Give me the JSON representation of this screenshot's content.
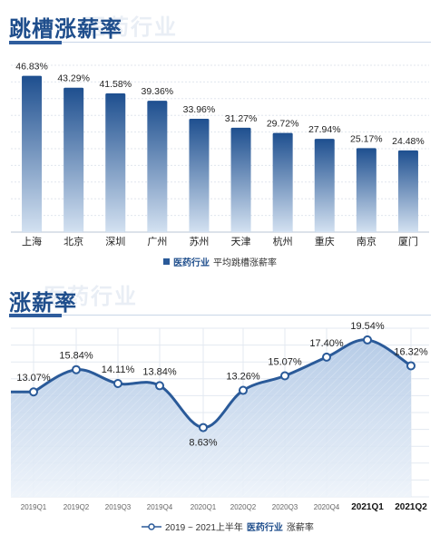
{
  "watermark": "医药行业",
  "chart_data": [
    {
      "type": "bar",
      "title": "跳槽涨薪率",
      "categories": [
        "上海",
        "北京",
        "深圳",
        "广州",
        "苏州",
        "天津",
        "杭州",
        "重庆",
        "南京",
        "厦门"
      ],
      "values": [
        46.83,
        43.29,
        41.58,
        39.36,
        33.96,
        31.27,
        29.72,
        27.94,
        25.17,
        24.48
      ],
      "value_labels": [
        "46.83%",
        "43.29%",
        "41.58%",
        "39.36%",
        "33.96%",
        "31.27%",
        "29.72%",
        "27.94%",
        "25.17%",
        "24.48%"
      ],
      "ylim": [
        0,
        50
      ],
      "grid": true,
      "legend": {
        "brand": "医药行业",
        "text": "平均跳槽涨薪率",
        "position": "bottom"
      },
      "colors": {
        "bar_top": "#1e4f8f",
        "bar_bottom": "#d3e1f1"
      }
    },
    {
      "type": "area",
      "title": "涨薪率",
      "categories": [
        "2019Q1",
        "2019Q2",
        "2019Q3",
        "2019Q4",
        "2020Q1",
        "2020Q2",
        "2020Q3",
        "2020Q4",
        "2021Q1",
        "2021Q2"
      ],
      "values": [
        13.07,
        15.84,
        14.11,
        13.84,
        8.63,
        13.26,
        15.07,
        17.4,
        19.54,
        16.32
      ],
      "value_labels": [
        "13.07%",
        "15.84%",
        "14.11%",
        "13.84%",
        "8.63%",
        "13.26%",
        "15.07%",
        "17.40%",
        "19.54%",
        "16.32%"
      ],
      "ylim": [
        0,
        21
      ],
      "grid": true,
      "legend": {
        "prefix": "2019 ~ 2021上半年",
        "brand": "医药行业",
        "text": "涨薪率",
        "position": "bottom"
      },
      "colors": {
        "line": "#2a5a99",
        "fill_top": "#aec6e4",
        "fill_bottom": "#edf3fa"
      }
    }
  ]
}
